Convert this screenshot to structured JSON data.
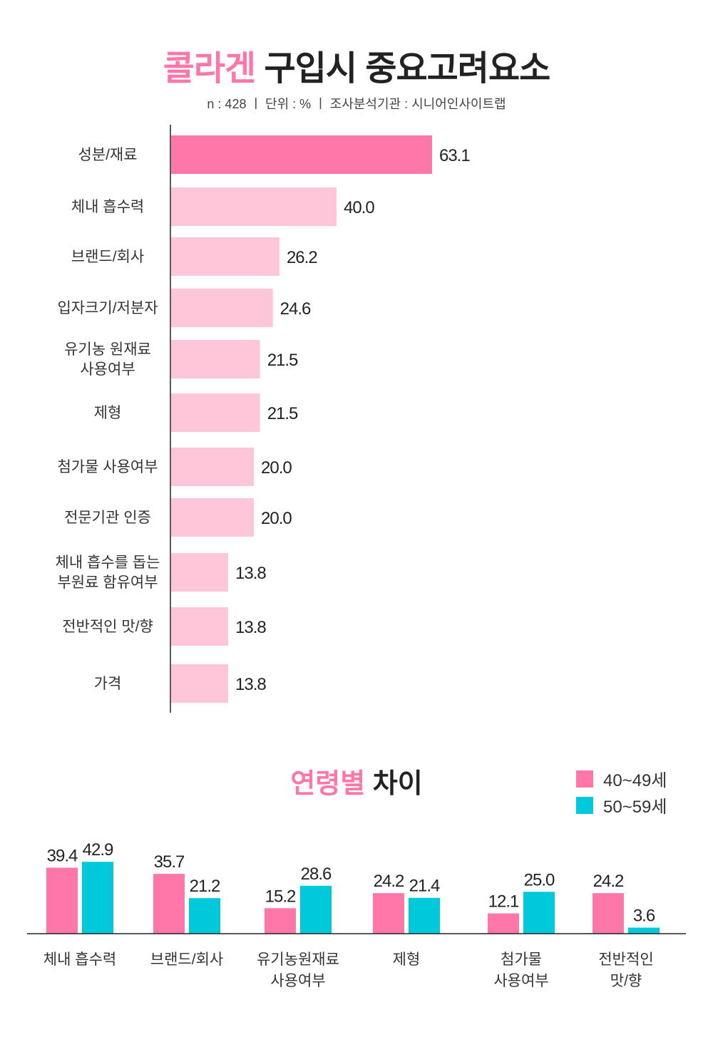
{
  "header": {
    "title_accent": "콜라겐",
    "title_rest": "구입시 중요고려요소",
    "subtitle": "n : 428  ㅣ 단위 : %  ㅣ 조사분석기관 : 시니어인사이트랩"
  },
  "colors": {
    "highlight": "#ff76a8",
    "light_pink": "#ffc6da",
    "pink": "#ff76a8",
    "cyan": "#00c9dc",
    "axis": "#222222"
  },
  "age_section": {
    "title_accent": "연령별",
    "title_rest": "차이"
  },
  "chart_data": [
    {
      "type": "bar",
      "orientation": "horizontal",
      "title": "콜라겐 구입시 중요고려요소",
      "unit": "%",
      "categories": [
        [
          "성분/재료"
        ],
        [
          "체내 흡수력"
        ],
        [
          "브랜드/회사"
        ],
        [
          "입자크기/저분자"
        ],
        [
          "유기농 원재료",
          "사용여부"
        ],
        [
          "제형"
        ],
        [
          "첨가물 사용여부"
        ],
        [
          "전문기관 인증"
        ],
        [
          "체내 흡수를 돕는",
          "부원료 함유여부"
        ],
        [
          "전반적인 맛/향"
        ],
        [
          "가격"
        ]
      ],
      "values": [
        63.1,
        40.0,
        26.2,
        24.6,
        21.5,
        21.5,
        20.0,
        20.0,
        13.8,
        13.8,
        13.8
      ],
      "labels": [
        "63.1",
        "40.0",
        "26.2",
        "24.6",
        "21.5",
        "21.5",
        "20.0",
        "20.0",
        "13.8",
        "13.8",
        "13.8"
      ],
      "highlight_index": 0
    },
    {
      "type": "bar",
      "orientation": "vertical",
      "title": "연령별 차이",
      "legend_position": "top-right",
      "categories": [
        [
          "체내 흡수력"
        ],
        [
          "브랜드/회사"
        ],
        [
          "유기농원재료",
          "사용여부"
        ],
        [
          "제형"
        ],
        [
          "첨가물",
          "사용여부"
        ],
        [
          "전반적인",
          "맛/향"
        ]
      ],
      "series": [
        {
          "name": "40~49세",
          "values": [
            39.4,
            35.7,
            15.2,
            24.2,
            12.1,
            24.2
          ],
          "labels": [
            "39.4",
            "35.7",
            "15.2",
            "24.2",
            "12.1",
            "24.2"
          ]
        },
        {
          "name": "50~59세",
          "values": [
            42.9,
            21.2,
            28.6,
            21.4,
            25.0,
            3.6
          ],
          "labels": [
            "42.9",
            "21.2",
            "28.6",
            "21.4",
            "25.0",
            "3.6"
          ]
        }
      ]
    }
  ]
}
